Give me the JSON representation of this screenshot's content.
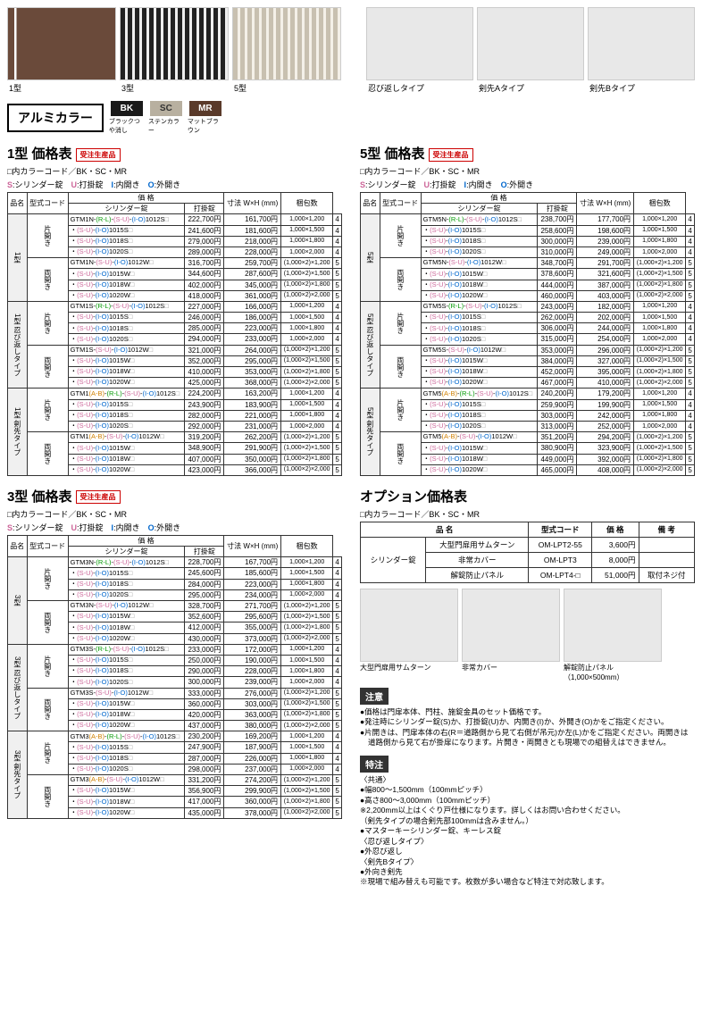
{
  "top_fences": [
    {
      "label": "1型"
    },
    {
      "label": "3型"
    },
    {
      "label": "5型"
    }
  ],
  "top_spikes": [
    {
      "label": "忍び返しタイプ"
    },
    {
      "label": "剣先Aタイプ"
    },
    {
      "label": "剣先Bタイプ"
    }
  ],
  "color_title": "アルミカラー",
  "swatches": [
    {
      "code": "BK",
      "name": "ブラックつや消し",
      "bg": "#1a1a1a"
    },
    {
      "code": "SC",
      "name": "ステンカラー",
      "bg": "#b8b0a0"
    },
    {
      "code": "MR",
      "name": "マットブラウン",
      "bg": "#5a3a2a"
    }
  ],
  "legend_header": "□内カラーコード／BK・SC・MR",
  "legend_locks": "S:シリンダー錠　U:打掛錠　I:内開き　O:外開き",
  "table_headers": {
    "name": "品名",
    "code": "型式コード",
    "price": "価 格",
    "p1": "シリンダー錠",
    "p2": "打掛錠",
    "dim": "寸法 W×H (mm)",
    "pkg": "梱包数"
  },
  "badge": "受注生産品",
  "t1": {
    "title": "1型 価格表",
    "groups": [
      {
        "cat": "1型",
        "sub": "片開き",
        "rows": [
          {
            "c": "GTM1N-(R-L)-(S-U)-(I-O)1012S□",
            "p1": "222,700円",
            "p2": "161,700円",
            "d": "1,000×1,200",
            "n": "4"
          },
          {
            "c": "・(S-U)-(I-O)1015S□",
            "p1": "241,600円",
            "p2": "181,600円",
            "d": "1,000×1,500",
            "n": "4"
          },
          {
            "c": "・(S-U)-(I-O)1018S□",
            "p1": "279,000円",
            "p2": "218,000円",
            "d": "1,000×1,800",
            "n": "4"
          },
          {
            "c": "・(S-U)-(I-O)1020S□",
            "p1": "289,000円",
            "p2": "228,000円",
            "d": "1,000×2,000",
            "n": "4"
          }
        ]
      },
      {
        "cat": "",
        "sub": "両開き",
        "rows": [
          {
            "c": "GTM1N-(S-U)-(I-O)1012W□",
            "p1": "316,700円",
            "p2": "259,700円",
            "d": "(1,000×2)×1,200",
            "n": "5"
          },
          {
            "c": "・(S-U)-(I-O)1015W□",
            "p1": "344,600円",
            "p2": "287,600円",
            "d": "(1,000×2)×1,500",
            "n": "5"
          },
          {
            "c": "・(S-U)-(I-O)1018W□",
            "p1": "402,000円",
            "p2": "345,000円",
            "d": "(1,000×2)×1,800",
            "n": "5"
          },
          {
            "c": "・(S-U)-(I-O)1020W□",
            "p1": "418,000円",
            "p2": "361,000円",
            "d": "(1,000×2)×2,000",
            "n": "5"
          }
        ]
      },
      {
        "cat": "1型 忍び返しタイプ",
        "sub": "片開き",
        "rows": [
          {
            "c": "GTM1S-(R-L)-(S-U)-(I-O)1012S□",
            "p1": "227,000円",
            "p2": "166,000円",
            "d": "1,000×1,200",
            "n": "4"
          },
          {
            "c": "・(S-U)-(I-O)1015S□",
            "p1": "246,000円",
            "p2": "186,000円",
            "d": "1,000×1,500",
            "n": "4"
          },
          {
            "c": "・(S-U)-(I-O)1018S□",
            "p1": "285,000円",
            "p2": "223,000円",
            "d": "1,000×1,800",
            "n": "4"
          },
          {
            "c": "・(S-U)-(I-O)1020S□",
            "p1": "294,000円",
            "p2": "233,000円",
            "d": "1,000×2,000",
            "n": "4"
          }
        ]
      },
      {
        "cat": "",
        "sub": "両開き",
        "rows": [
          {
            "c": "GTM1S-(S-U)-(I-O)1012W□",
            "p1": "321,000円",
            "p2": "264,000円",
            "d": "(1,000×2)×1,200",
            "n": "5"
          },
          {
            "c": "・(S-U)-(I-O)1015W□",
            "p1": "352,000円",
            "p2": "295,000円",
            "d": "(1,000×2)×1,500",
            "n": "5"
          },
          {
            "c": "・(S-U)-(I-O)1018W□",
            "p1": "410,000円",
            "p2": "353,000円",
            "d": "(1,000×2)×1,800",
            "n": "5"
          },
          {
            "c": "・(S-U)-(I-O)1020W□",
            "p1": "425,000円",
            "p2": "368,000円",
            "d": "(1,000×2)×2,000",
            "n": "5"
          }
        ]
      },
      {
        "cat": "1型 剣先タイプ",
        "sub": "片開き",
        "rows": [
          {
            "c": "GTM1(A-B)-(R-L)-(S-U)-(I-O)1012S□",
            "p1": "224,200円",
            "p2": "163,200円",
            "d": "1,000×1,200",
            "n": "4"
          },
          {
            "c": "・(S-U)-(I-O)1015S□",
            "p1": "243,900円",
            "p2": "183,900円",
            "d": "1,000×1,500",
            "n": "4"
          },
          {
            "c": "・(S-U)-(I-O)1018S□",
            "p1": "282,000円",
            "p2": "221,000円",
            "d": "1,000×1,800",
            "n": "4"
          },
          {
            "c": "・(S-U)-(I-O)1020S□",
            "p1": "292,000円",
            "p2": "231,000円",
            "d": "1,000×2,000",
            "n": "4"
          }
        ]
      },
      {
        "cat": "",
        "sub": "両開き",
        "rows": [
          {
            "c": "GTM1(A-B)-(S-U)-(I-O)1012W□",
            "p1": "319,200円",
            "p2": "262,200円",
            "d": "(1,000×2)×1,200",
            "n": "5"
          },
          {
            "c": "・(S-U)-(I-O)1015W□",
            "p1": "348,900円",
            "p2": "291,900円",
            "d": "(1,000×2)×1,500",
            "n": "5"
          },
          {
            "c": "・(S-U)-(I-O)1018W□",
            "p1": "407,000円",
            "p2": "350,000円",
            "d": "(1,000×2)×1,800",
            "n": "5"
          },
          {
            "c": "・(S-U)-(I-O)1020W□",
            "p1": "423,000円",
            "p2": "366,000円",
            "d": "(1,000×2)×2,000",
            "n": "5"
          }
        ]
      }
    ]
  },
  "t5": {
    "title": "5型 価格表",
    "groups": [
      {
        "cat": "5型",
        "sub": "片開き",
        "rows": [
          {
            "c": "GTM5N-(R-L)-(S-U)-(I-O)1012S□",
            "p1": "238,700円",
            "p2": "177,700円",
            "d": "1,000×1,200",
            "n": "4"
          },
          {
            "c": "・(S-U)-(I-O)1015S□",
            "p1": "258,600円",
            "p2": "198,600円",
            "d": "1,000×1,500",
            "n": "4"
          },
          {
            "c": "・(S-U)-(I-O)1018S□",
            "p1": "300,000円",
            "p2": "239,000円",
            "d": "1,000×1,800",
            "n": "4"
          },
          {
            "c": "・(S-U)-(I-O)1020S□",
            "p1": "310,000円",
            "p2": "249,000円",
            "d": "1,000×2,000",
            "n": "4"
          }
        ]
      },
      {
        "cat": "",
        "sub": "両開き",
        "rows": [
          {
            "c": "GTM5N-(S-U)-(I-O)1012W□",
            "p1": "348,700円",
            "p2": "291,700円",
            "d": "(1,000×2)×1,200",
            "n": "5"
          },
          {
            "c": "・(S-U)-(I-O)1015W□",
            "p1": "378,600円",
            "p2": "321,600円",
            "d": "(1,000×2)×1,500",
            "n": "5"
          },
          {
            "c": "・(S-U)-(I-O)1018W□",
            "p1": "444,000円",
            "p2": "387,000円",
            "d": "(1,000×2)×1,800",
            "n": "5"
          },
          {
            "c": "・(S-U)-(I-O)1020W□",
            "p1": "460,000円",
            "p2": "403,000円",
            "d": "(1,000×2)×2,000",
            "n": "5"
          }
        ]
      },
      {
        "cat": "5型 忍び返しタイプ",
        "sub": "片開き",
        "rows": [
          {
            "c": "GTM5S-(R-L)-(S-U)-(I-O)1012S□",
            "p1": "243,000円",
            "p2": "182,000円",
            "d": "1,000×1,200",
            "n": "4"
          },
          {
            "c": "・(S-U)-(I-O)1015S□",
            "p1": "262,000円",
            "p2": "202,000円",
            "d": "1,000×1,500",
            "n": "4"
          },
          {
            "c": "・(S-U)-(I-O)1018S□",
            "p1": "306,000円",
            "p2": "244,000円",
            "d": "1,000×1,800",
            "n": "4"
          },
          {
            "c": "・(S-U)-(I-O)1020S□",
            "p1": "315,000円",
            "p2": "254,000円",
            "d": "1,000×2,000",
            "n": "4"
          }
        ]
      },
      {
        "cat": "",
        "sub": "両開き",
        "rows": [
          {
            "c": "GTM5S-(S-U)-(I-O)1012W□",
            "p1": "353,000円",
            "p2": "296,000円",
            "d": "(1,000×2)×1,200",
            "n": "5"
          },
          {
            "c": "・(S-U)-(I-O)1015W□",
            "p1": "384,000円",
            "p2": "327,000円",
            "d": "(1,000×2)×1,500",
            "n": "5"
          },
          {
            "c": "・(S-U)-(I-O)1018W□",
            "p1": "452,000円",
            "p2": "395,000円",
            "d": "(1,000×2)×1,800",
            "n": "5"
          },
          {
            "c": "・(S-U)-(I-O)1020W□",
            "p1": "467,000円",
            "p2": "410,000円",
            "d": "(1,000×2)×2,000",
            "n": "5"
          }
        ]
      },
      {
        "cat": "5型 剣先タイプ",
        "sub": "片開き",
        "rows": [
          {
            "c": "GTM5(A-B)-(R-L)-(S-U)-(I-O)1012S□",
            "p1": "240,200円",
            "p2": "179,200円",
            "d": "1,000×1,200",
            "n": "4"
          },
          {
            "c": "・(S-U)-(I-O)1015S□",
            "p1": "259,900円",
            "p2": "199,900円",
            "d": "1,000×1,500",
            "n": "4"
          },
          {
            "c": "・(S-U)-(I-O)1018S□",
            "p1": "303,000円",
            "p2": "242,000円",
            "d": "1,000×1,800",
            "n": "4"
          },
          {
            "c": "・(S-U)-(I-O)1020S□",
            "p1": "313,000円",
            "p2": "252,000円",
            "d": "1,000×2,000",
            "n": "4"
          }
        ]
      },
      {
        "cat": "",
        "sub": "両開き",
        "rows": [
          {
            "c": "GTM5(A-B)-(S-U)-(I-O)1012W□",
            "p1": "351,200円",
            "p2": "294,200円",
            "d": "(1,000×2)×1,200",
            "n": "5"
          },
          {
            "c": "・(S-U)-(I-O)1015W□",
            "p1": "380,900円",
            "p2": "323,900円",
            "d": "(1,000×2)×1,500",
            "n": "5"
          },
          {
            "c": "・(S-U)-(I-O)1018W□",
            "p1": "449,000円",
            "p2": "392,000円",
            "d": "(1,000×2)×1,800",
            "n": "5"
          },
          {
            "c": "・(S-U)-(I-O)1020W□",
            "p1": "465,000円",
            "p2": "408,000円",
            "d": "(1,000×2)×2,000",
            "n": "5"
          }
        ]
      }
    ]
  },
  "t3": {
    "title": "3型 価格表",
    "groups": [
      {
        "cat": "3型",
        "sub": "片開き",
        "rows": [
          {
            "c": "GTM3N-(R-L)-(S-U)-(I-O)1012S□",
            "p1": "228,700円",
            "p2": "167,700円",
            "d": "1,000×1,200",
            "n": "4"
          },
          {
            "c": "・(S-U)-(I-O)1015S□",
            "p1": "245,600円",
            "p2": "185,600円",
            "d": "1,000×1,500",
            "n": "4"
          },
          {
            "c": "・(S-U)-(I-O)1018S□",
            "p1": "284,000円",
            "p2": "223,000円",
            "d": "1,000×1,800",
            "n": "4"
          },
          {
            "c": "・(S-U)-(I-O)1020S□",
            "p1": "295,000円",
            "p2": "234,000円",
            "d": "1,000×2,000",
            "n": "4"
          }
        ]
      },
      {
        "cat": "",
        "sub": "両開き",
        "rows": [
          {
            "c": "GTM3N-(S-U)-(I-O)1012W□",
            "p1": "328,700円",
            "p2": "271,700円",
            "d": "(1,000×2)×1,200",
            "n": "5"
          },
          {
            "c": "・(S-U)-(I-O)1015W□",
            "p1": "352,600円",
            "p2": "295,600円",
            "d": "(1,000×2)×1,500",
            "n": "5"
          },
          {
            "c": "・(S-U)-(I-O)1018W□",
            "p1": "412,000円",
            "p2": "355,000円",
            "d": "(1,000×2)×1,800",
            "n": "5"
          },
          {
            "c": "・(S-U)-(I-O)1020W□",
            "p1": "430,000円",
            "p2": "373,000円",
            "d": "(1,000×2)×2,000",
            "n": "5"
          }
        ]
      },
      {
        "cat": "3型 忍び返しタイプ",
        "sub": "片開き",
        "rows": [
          {
            "c": "GTM3S-(R-L)-(S-U)-(I-O)1012S□",
            "p1": "233,000円",
            "p2": "172,000円",
            "d": "1,000×1,200",
            "n": "4"
          },
          {
            "c": "・(S-U)-(I-O)1015S□",
            "p1": "250,000円",
            "p2": "190,000円",
            "d": "1,000×1,500",
            "n": "4"
          },
          {
            "c": "・(S-U)-(I-O)1018S□",
            "p1": "290,000円",
            "p2": "228,000円",
            "d": "1,000×1,800",
            "n": "4"
          },
          {
            "c": "・(S-U)-(I-O)1020S□",
            "p1": "300,000円",
            "p2": "239,000円",
            "d": "1,000×2,000",
            "n": "4"
          }
        ]
      },
      {
        "cat": "",
        "sub": "両開き",
        "rows": [
          {
            "c": "GTM3S-(S-U)-(I-O)1012W□",
            "p1": "333,000円",
            "p2": "276,000円",
            "d": "(1,000×2)×1,200",
            "n": "5"
          },
          {
            "c": "・(S-U)-(I-O)1015W□",
            "p1": "360,000円",
            "p2": "303,000円",
            "d": "(1,000×2)×1,500",
            "n": "5"
          },
          {
            "c": "・(S-U)-(I-O)1018W□",
            "p1": "420,000円",
            "p2": "363,000円",
            "d": "(1,000×2)×1,800",
            "n": "5"
          },
          {
            "c": "・(S-U)-(I-O)1020W□",
            "p1": "437,000円",
            "p2": "380,000円",
            "d": "(1,000×2)×2,000",
            "n": "5"
          }
        ]
      },
      {
        "cat": "3型 剣先タイプ",
        "sub": "片開き",
        "rows": [
          {
            "c": "GTM3(A-B)-(R-L)-(S-U)-(I-O)1012S□",
            "p1": "230,200円",
            "p2": "169,200円",
            "d": "1,000×1,200",
            "n": "4"
          },
          {
            "c": "・(S-U)-(I-O)1015S□",
            "p1": "247,900円",
            "p2": "187,900円",
            "d": "1,000×1,500",
            "n": "4"
          },
          {
            "c": "・(S-U)-(I-O)1018S□",
            "p1": "287,000円",
            "p2": "226,000円",
            "d": "1,000×1,800",
            "n": "4"
          },
          {
            "c": "・(S-U)-(I-O)1020S□",
            "p1": "298,000円",
            "p2": "237,000円",
            "d": "1,000×2,000",
            "n": "4"
          }
        ]
      },
      {
        "cat": "",
        "sub": "両開き",
        "rows": [
          {
            "c": "GTM3(A-B)-(S-U)-(I-O)1012W□",
            "p1": "331,200円",
            "p2": "274,200円",
            "d": "(1,000×2)×1,200",
            "n": "5"
          },
          {
            "c": "・(S-U)-(I-O)1015W□",
            "p1": "356,900円",
            "p2": "299,900円",
            "d": "(1,000×2)×1,500",
            "n": "5"
          },
          {
            "c": "・(S-U)-(I-O)1018W□",
            "p1": "417,000円",
            "p2": "360,000円",
            "d": "(1,000×2)×1,800",
            "n": "5"
          },
          {
            "c": "・(S-U)-(I-O)1020W□",
            "p1": "435,000円",
            "p2": "378,000円",
            "d": "(1,000×2)×2,000",
            "n": "5"
          }
        ]
      }
    ]
  },
  "opt": {
    "title": "オプション価格表",
    "legend": "□内カラーコード／BK・SC・MR",
    "headers": {
      "name": "品 名",
      "code": "型式コード",
      "price": "価 格",
      "note": "備 考"
    },
    "cat": "シリンダー錠",
    "rows": [
      {
        "n": "大型門扉用サムターン",
        "c": "OM-LPT2-55",
        "p": "3,600円",
        "r": ""
      },
      {
        "n": "非常カバー",
        "c": "OM-LPT3",
        "p": "8,000円",
        "r": ""
      },
      {
        "n": "解錠防止パネル",
        "c": "OM-LPT4-□",
        "p": "51,000円",
        "r": "取付ネジ付"
      }
    ],
    "imgs": [
      {
        "label": "大型門扉用サムターン"
      },
      {
        "label": "非常カバー"
      },
      {
        "label": "解錠防止パネル\n（1,000×500mm）"
      }
    ]
  },
  "notes1_hdr": "注意",
  "notes1": [
    "価格は門扉本体、門柱、施錠金具のセット価格です。",
    "発注時にシリンダー錠(S)か、打掛錠(U)か、内開き(I)か、外開き(O)かをご指定ください。",
    "片開きは、門扉本体の右(R＝道路側から見て右側が吊元)か左(L)かをご指定ください。両開きは道路側から見て右が掛扉になります。片開き・両開きとも現場での組替えはできません。"
  ],
  "notes2_hdr": "特注",
  "notes2": [
    "〈共通〉",
    "●幅800～1,500mm（100mmピッチ）",
    "●高さ800～3,000mm（100mmピッチ）",
    "※2,200mm以上はくぐり戸仕様になります。詳しくはお問い合わせください。",
    "（剣先タイプの場合剣先部100mmは含みません。）",
    "●マスターキーシリンダー錠、キーレス錠",
    "〈忍び返しタイプ〉",
    "●外忍び返し",
    "〈剣先Bタイプ〉",
    "●外向き剣先",
    "※現場で組み替えも可能です。枚数が多い場合など特注で対応致します。"
  ]
}
